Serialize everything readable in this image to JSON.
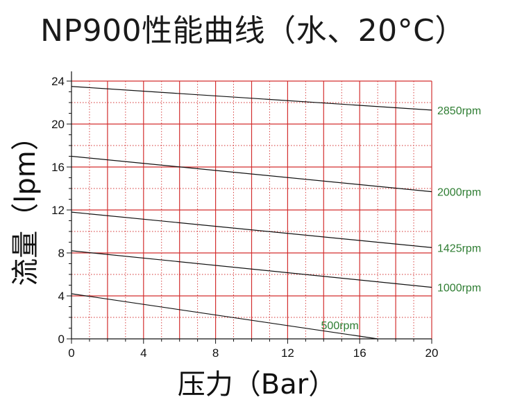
{
  "chart_data": {
    "type": "line",
    "title": "NP900性能曲线（水、20°C）",
    "xlabel": "压力（Bar）",
    "ylabel": "流量（lpm）",
    "xlim": [
      0,
      20
    ],
    "ylim": [
      0,
      24
    ],
    "x_ticks": [
      "0",
      "4",
      "8",
      "12",
      "16",
      "20"
    ],
    "y_ticks": [
      "0",
      "4",
      "8",
      "12",
      "16",
      "20",
      "24"
    ],
    "grid": true,
    "grid_color": "#d32f2f",
    "series_label_color": "#2e7d32",
    "series": [
      {
        "name": "2850rpm",
        "x": [
          0,
          20
        ],
        "y": [
          23.5,
          21.3
        ]
      },
      {
        "name": "2000rpm",
        "x": [
          0,
          20
        ],
        "y": [
          17.0,
          13.7
        ]
      },
      {
        "name": "1425rpm",
        "x": [
          0,
          20
        ],
        "y": [
          11.8,
          8.5
        ]
      },
      {
        "name": "1000rpm",
        "x": [
          0,
          20
        ],
        "y": [
          8.2,
          4.8
        ]
      },
      {
        "name": "500rpm",
        "x": [
          0,
          17
        ],
        "y": [
          4.2,
          0
        ]
      }
    ]
  }
}
